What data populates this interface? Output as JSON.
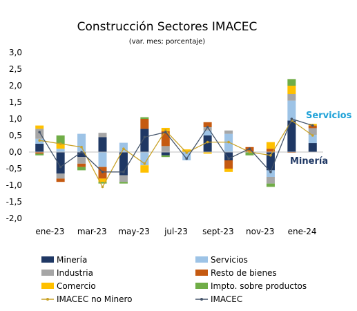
{
  "chart_data": {
    "type": "bar",
    "title": "Construcción Sectores IMACEC",
    "subtitle": "(var. mes; porcentaje)",
    "ylim": [
      -2.0,
      3.0
    ],
    "yticks": [
      "3,0",
      "2,5",
      "2,0",
      "1,5",
      "1,0",
      "0,5",
      "0,0",
      "-0,5",
      "-1,0",
      "-1,5",
      "-2,0"
    ],
    "ytick_values": [
      3.0,
      2.5,
      2.0,
      1.5,
      1.0,
      0.5,
      0.0,
      -0.5,
      -1.0,
      -1.5,
      -2.0
    ],
    "categories": [
      "ene-23",
      "feb-23",
      "mar-23",
      "abr-23",
      "may-23",
      "jun-23",
      "jul-23",
      "ago-23",
      "sept-23",
      "oct-23",
      "nov-23",
      "dic-23",
      "ene-24",
      "feb-24"
    ],
    "xtick_labels": [
      "ene-23",
      "mar-23",
      "may-23",
      "jul-23",
      "sept-23",
      "nov-23",
      "ene-24"
    ],
    "xtick_indices": [
      0,
      2,
      4,
      6,
      8,
      10,
      12
    ],
    "series": [
      {
        "name": "Minería",
        "kind": "bar",
        "color": "#1f3864",
        "values": [
          0.25,
          -0.65,
          -0.15,
          0.45,
          -0.7,
          0.7,
          -0.1,
          0.0,
          0.5,
          -0.25,
          0.0,
          -0.55,
          0.95,
          0.27
        ]
      },
      {
        "name": "Servicios",
        "kind": "bar",
        "color": "#9dc3e6",
        "values": [
          0.15,
          0.1,
          0.55,
          -0.45,
          0.28,
          -0.4,
          0.0,
          -0.25,
          0.15,
          0.55,
          0.0,
          -0.2,
          0.6,
          0.25
        ]
      },
      {
        "name": "Industria",
        "kind": "bar",
        "color": "#a6a6a6",
        "values": [
          0.3,
          -0.15,
          -0.2,
          0.13,
          -0.2,
          0.0,
          0.18,
          0.0,
          0.1,
          0.1,
          0.0,
          -0.2,
          0.2,
          0.2
        ]
      },
      {
        "name": "Resto de bienes",
        "kind": "bar",
        "color": "#c55a11",
        "values": [
          -0.05,
          -0.1,
          -0.1,
          -0.35,
          0.0,
          0.3,
          0.45,
          0.0,
          0.15,
          -0.25,
          0.15,
          0.1,
          -0.02,
          0.08
        ]
      },
      {
        "name": "Comercio",
        "kind": "bar",
        "color": "#ffc000",
        "values": [
          0.1,
          0.15,
          0.0,
          -0.1,
          0.0,
          -0.22,
          0.1,
          0.08,
          -0.05,
          -0.1,
          0.0,
          0.2,
          0.25,
          0.05
        ]
      },
      {
        "name": "Impto. sobre productos",
        "kind": "bar",
        "color": "#70ad47",
        "values": [
          -0.05,
          0.25,
          -0.1,
          -0.05,
          -0.05,
          0.05,
          -0.05,
          0.0,
          0.0,
          0.0,
          -0.1,
          -0.1,
          0.2,
          0.0
        ]
      },
      {
        "name": "IMACEC no Minero",
        "kind": "line",
        "color": "#c9a227",
        "values": [
          0.35,
          0.25,
          0.15,
          -1.05,
          0.1,
          -0.35,
          0.65,
          -0.02,
          0.3,
          0.3,
          0.0,
          -0.1,
          0.95,
          0.5
        ]
      },
      {
        "name": "IMACEC",
        "kind": "line",
        "color": "#44546a",
        "values": [
          0.6,
          -0.45,
          0.0,
          -0.6,
          -0.6,
          0.45,
          0.6,
          -0.2,
          0.75,
          -0.2,
          0.1,
          -0.6,
          1.0,
          0.8
        ]
      }
    ],
    "annotations": [
      {
        "text": "Servicios",
        "color": "#1fa2d8"
      },
      {
        "text": "Minería",
        "color": "#1f3864"
      }
    ],
    "grid": false,
    "legend_placement": "bottom"
  }
}
